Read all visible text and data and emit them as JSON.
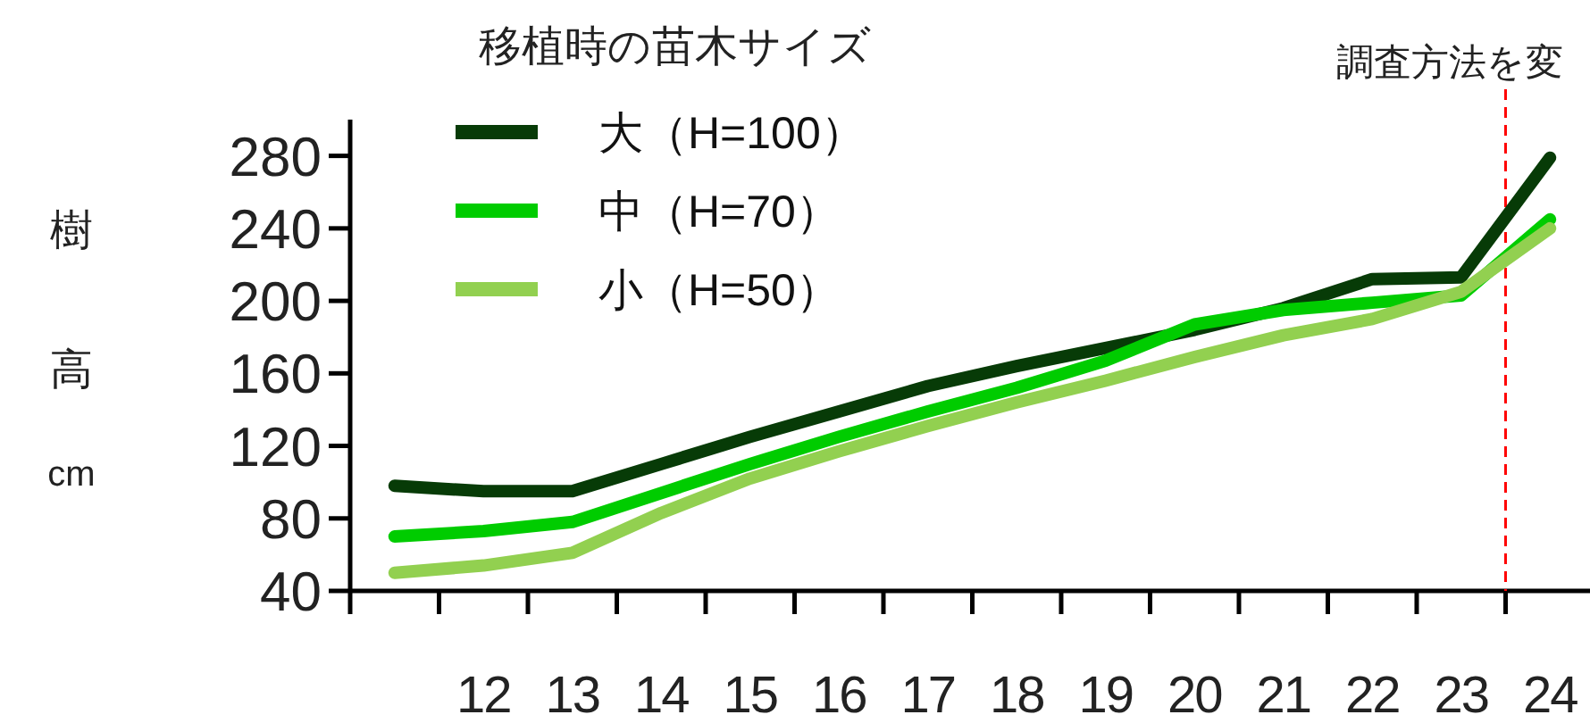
{
  "chart_data": {
    "type": "line",
    "legend_title": "移植時の苗木サイズ",
    "ylabel": "樹高cm",
    "x": [
      11,
      12,
      13,
      14,
      15,
      16,
      17,
      18,
      19,
      20,
      21,
      22,
      23,
      24
    ],
    "series": [
      {
        "name": "大（H=100）",
        "color": "#073b07",
        "values": [
          98,
          95,
          95,
          110,
          125,
          139,
          153,
          164,
          174,
          184,
          196,
          212,
          213,
          279
        ]
      },
      {
        "name": "中（H=70）",
        "color": "#00cc00",
        "values": [
          70,
          73,
          78,
          94,
          110,
          125,
          139,
          152,
          167,
          187,
          195,
          199,
          203,
          245
        ]
      },
      {
        "name": "小（H=50）",
        "color": "#92d050",
        "values": [
          50,
          54,
          61,
          83,
          102,
          117,
          131,
          144,
          156,
          169,
          181,
          190,
          205,
          240
        ]
      }
    ],
    "xlim": [
      10.5,
      24.45
    ],
    "xticks": [
      {
        "value": 10.5,
        "label": null
      },
      {
        "value": 11.5,
        "label": null
      },
      {
        "value": 12.5,
        "label": null
      },
      {
        "value": 13.5,
        "label": null
      },
      {
        "value": 14.5,
        "label": null
      },
      {
        "value": 15.5,
        "label": null
      },
      {
        "value": 16.5,
        "label": null
      },
      {
        "value": 17.5,
        "label": null
      },
      {
        "value": 18.5,
        "label": null
      },
      {
        "value": 19.5,
        "label": null
      },
      {
        "value": 20.5,
        "label": null
      },
      {
        "value": 21.5,
        "label": null
      },
      {
        "value": 22.5,
        "label": null
      },
      {
        "value": 23.5,
        "label": null
      },
      12,
      13,
      14,
      15,
      16,
      17,
      18,
      19,
      20,
      21,
      22,
      23,
      24
    ],
    "ylim": [
      40,
      300
    ],
    "yticks": [
      40,
      80,
      120,
      160,
      200,
      240,
      280
    ],
    "ref_lines": [
      {
        "axis": "x",
        "value": 23.5,
        "label": "調査方法を変",
        "color": "#ff0000",
        "line_style": "dashed"
      }
    ],
    "grid": false,
    "legend": "top left",
    "marker": "none",
    "line_style": "solid"
  }
}
